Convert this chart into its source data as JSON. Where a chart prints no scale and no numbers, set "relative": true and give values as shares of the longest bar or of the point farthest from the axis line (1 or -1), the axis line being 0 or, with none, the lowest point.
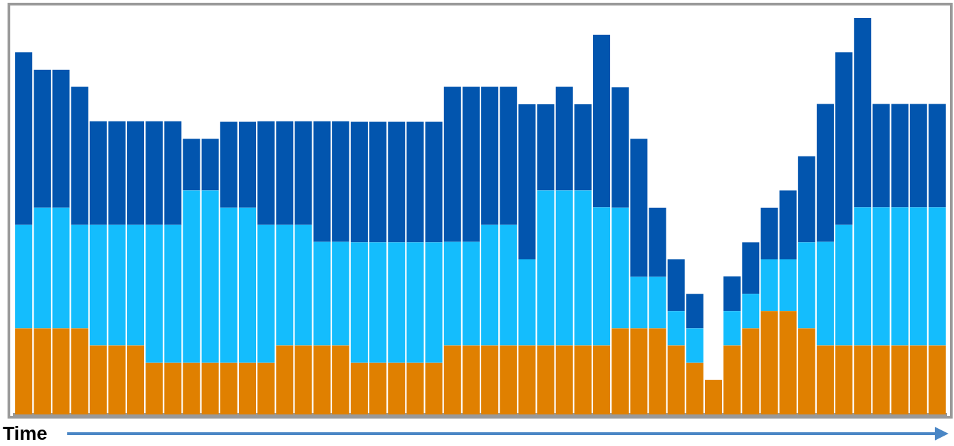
{
  "chart_data": {
    "type": "bar",
    "stacked": true,
    "relative": true,
    "xlabel": "Time",
    "legend": false,
    "categories": [
      null,
      null,
      null,
      null,
      null,
      null,
      null,
      null,
      null,
      null,
      null,
      null,
      null,
      null,
      null,
      null,
      null,
      null,
      null,
      null,
      null,
      null,
      null,
      null,
      null,
      null,
      null,
      null,
      null,
      null,
      null,
      null,
      null,
      null,
      null,
      null,
      null,
      null,
      null,
      null,
      null,
      null,
      null,
      null,
      null,
      null,
      null,
      null,
      null,
      null
    ],
    "series": [
      {
        "color": "#e08000",
        "values": [
          0.217,
          0.217,
          0.217,
          0.217,
          0.174,
          0.174,
          0.174,
          0.13,
          0.13,
          0.13,
          0.13,
          0.13,
          0.13,
          0.13,
          0.174,
          0.174,
          0.174,
          0.174,
          0.13,
          0.13,
          0.13,
          0.13,
          0.13,
          0.174,
          0.174,
          0.174,
          0.174,
          0.174,
          0.174,
          0.174,
          0.174,
          0.174,
          0.217,
          0.217,
          0.217,
          0.174,
          0.13,
          0.087,
          0.174,
          0.217,
          0.261,
          0.261,
          0.217,
          0.174,
          0.174,
          0.174,
          0.174,
          0.174,
          0.174,
          0.174
        ]
      },
      {
        "color": "#14bdfd",
        "values": [
          0.261,
          0.304,
          0.304,
          0.261,
          0.304,
          0.304,
          0.304,
          0.348,
          0.348,
          0.435,
          0.435,
          0.391,
          0.391,
          0.348,
          0.304,
          0.304,
          0.261,
          0.261,
          0.304,
          0.304,
          0.304,
          0.304,
          0.304,
          0.261,
          0.261,
          0.304,
          0.304,
          0.217,
          0.391,
          0.391,
          0.391,
          0.348,
          0.304,
          0.13,
          0.13,
          0.087,
          0.087,
          0,
          0.087,
          0.087,
          0.13,
          0.13,
          0.217,
          0.261,
          0.304,
          0.348,
          0.348,
          0.348,
          0.348,
          0.348
        ]
      },
      {
        "color": "#0255ae",
        "values": [
          0.435,
          0.348,
          0.348,
          0.348,
          0.261,
          0.261,
          0.261,
          0.261,
          0.261,
          0.13,
          0.13,
          0.217,
          0.217,
          0.261,
          0.261,
          0.261,
          0.304,
          0.304,
          0.304,
          0.304,
          0.304,
          0.304,
          0.304,
          0.391,
          0.391,
          0.348,
          0.348,
          0.391,
          0.217,
          0.261,
          0.217,
          0.435,
          0.304,
          0.348,
          0.174,
          0.13,
          0.087,
          0,
          0.087,
          0.13,
          0.13,
          0.174,
          0.217,
          0.348,
          0.435,
          0.478,
          0.261,
          0.261,
          0.261,
          0.261
        ]
      }
    ]
  }
}
